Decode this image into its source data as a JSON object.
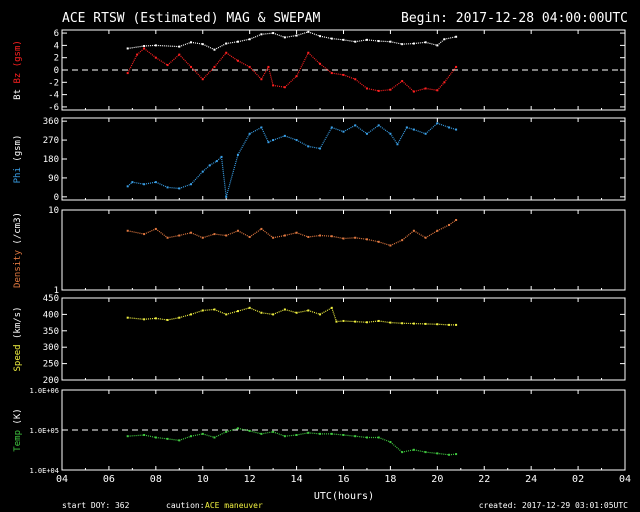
{
  "header": {
    "title": "ACE RTSW (Estimated) MAG & SWEPAM",
    "begin": "Begin: 2017-12-28 04:00:00UTC"
  },
  "footer": {
    "start_doy": "start DOY: 362",
    "caution_label": "caution:",
    "caution_text": "ACE maneuver",
    "created": "created: 2017-12-29 03:01:05UTC",
    "xlabel": "UTC(hours)"
  },
  "colors": {
    "background": "#000000",
    "axes": "#ffffff",
    "bt": "#ffffff",
    "bz": "#ff2020",
    "phi": "#3aa0e8",
    "density": "#e07840",
    "speed": "#f0f040",
    "temp": "#40c840",
    "caution": "#f0f040"
  },
  "chart_data": {
    "type": "scatter",
    "x_ticks": [
      "04",
      "06",
      "08",
      "10",
      "12",
      "14",
      "16",
      "18",
      "20",
      "22",
      "24",
      "02",
      "04"
    ],
    "xlim": [
      4,
      28
    ],
    "panels": [
      {
        "id": "mag",
        "ylabel_parts": [
          {
            "text": "Bt",
            "color": "#ffffff"
          },
          {
            "text": " Bz ",
            "color": "#ff2020"
          },
          {
            "text": "(gsm)",
            "color": "#ff2020"
          }
        ],
        "ylim": [
          -6.5,
          6.5
        ],
        "scale": "linear",
        "y_ticks": [
          {
            "v": 6,
            "l": "6"
          },
          {
            "v": 4,
            "l": "4"
          },
          {
            "v": 2,
            "l": "2"
          },
          {
            "v": 0,
            "l": "0"
          },
          {
            "v": -2,
            "l": "-2"
          },
          {
            "v": -4,
            "l": "-4"
          },
          {
            "v": -6,
            "l": "-6"
          }
        ],
        "dashed_line": 0,
        "series": [
          {
            "color": "#ffffff",
            "points": [
              [
                6.8,
                3.5
              ],
              [
                7.5,
                3.9
              ],
              [
                8.0,
                4.0
              ],
              [
                9.0,
                3.8
              ],
              [
                9.5,
                4.5
              ],
              [
                10.0,
                4.2
              ],
              [
                10.5,
                3.3
              ],
              [
                11.0,
                4.3
              ],
              [
                11.5,
                4.6
              ],
              [
                12.0,
                5.0
              ],
              [
                12.5,
                5.8
              ],
              [
                13.0,
                6.0
              ],
              [
                13.5,
                5.3
              ],
              [
                14.0,
                5.6
              ],
              [
                14.5,
                6.2
              ],
              [
                15.0,
                5.5
              ],
              [
                15.5,
                5.1
              ],
              [
                16.0,
                4.9
              ],
              [
                16.5,
                4.6
              ],
              [
                17.0,
                4.9
              ],
              [
                17.5,
                4.7
              ],
              [
                18.0,
                4.6
              ],
              [
                18.5,
                4.2
              ],
              [
                19.0,
                4.3
              ],
              [
                19.5,
                4.5
              ],
              [
                20.0,
                4.0
              ],
              [
                20.3,
                5.0
              ],
              [
                20.8,
                5.4
              ]
            ]
          },
          {
            "color": "#ff2020",
            "points": [
              [
                6.8,
                -0.5
              ],
              [
                7.2,
                2.5
              ],
              [
                7.5,
                3.5
              ],
              [
                8.0,
                2.0
              ],
              [
                8.5,
                0.8
              ],
              [
                9.0,
                2.5
              ],
              [
                9.5,
                0.5
              ],
              [
                10.0,
                -1.5
              ],
              [
                10.5,
                0.5
              ],
              [
                11.0,
                2.8
              ],
              [
                11.5,
                1.5
              ],
              [
                12.0,
                0.5
              ],
              [
                12.5,
                -1.5
              ],
              [
                12.8,
                0.5
              ],
              [
                13.0,
                -2.5
              ],
              [
                13.5,
                -2.8
              ],
              [
                14.0,
                -1.0
              ],
              [
                14.5,
                2.8
              ],
              [
                15.0,
                1.0
              ],
              [
                15.5,
                -0.5
              ],
              [
                16.0,
                -0.8
              ],
              [
                16.5,
                -1.5
              ],
              [
                17.0,
                -3.0
              ],
              [
                17.5,
                -3.4
              ],
              [
                18.0,
                -3.2
              ],
              [
                18.5,
                -1.8
              ],
              [
                19.0,
                -3.5
              ],
              [
                19.5,
                -3.0
              ],
              [
                20.0,
                -3.3
              ],
              [
                20.3,
                -2.0
              ],
              [
                20.8,
                0.5
              ]
            ]
          }
        ]
      },
      {
        "id": "phi",
        "ylabel_parts": [
          {
            "text": "Phi",
            "color": "#3aa0e8"
          },
          {
            "text": " (gsm)",
            "color": "#ffffff"
          }
        ],
        "ylim": [
          -15,
          375
        ],
        "scale": "linear",
        "y_ticks": [
          {
            "v": 360,
            "l": "360"
          },
          {
            "v": 270,
            "l": "270"
          },
          {
            "v": 180,
            "l": "180"
          },
          {
            "v": 90,
            "l": "90"
          },
          {
            "v": 0,
            "l": "0"
          }
        ],
        "series": [
          {
            "color": "#3aa0e8",
            "points": [
              [
                6.8,
                50
              ],
              [
                7.0,
                70
              ],
              [
                7.5,
                60
              ],
              [
                8.0,
                70
              ],
              [
                8.5,
                45
              ],
              [
                9.0,
                40
              ],
              [
                9.5,
                60
              ],
              [
                10.0,
                120
              ],
              [
                10.3,
                150
              ],
              [
                10.6,
                170
              ],
              [
                10.8,
                190
              ],
              [
                11.0,
                0
              ],
              [
                11.5,
                200
              ],
              [
                12.0,
                300
              ],
              [
                12.5,
                330
              ],
              [
                12.8,
                260
              ],
              [
                13.0,
                270
              ],
              [
                13.5,
                290
              ],
              [
                14.0,
                270
              ],
              [
                14.5,
                240
              ],
              [
                15.0,
                230
              ],
              [
                15.5,
                330
              ],
              [
                16.0,
                310
              ],
              [
                16.5,
                340
              ],
              [
                17.0,
                300
              ],
              [
                17.5,
                340
              ],
              [
                18.0,
                300
              ],
              [
                18.3,
                250
              ],
              [
                18.7,
                330
              ],
              [
                19.0,
                320
              ],
              [
                19.5,
                300
              ],
              [
                20.0,
                350
              ],
              [
                20.5,
                330
              ],
              [
                20.8,
                320
              ]
            ]
          }
        ]
      },
      {
        "id": "density",
        "ylabel_parts": [
          {
            "text": "Density",
            "color": "#e07840"
          },
          {
            "text": " (/cm3)",
            "color": "#ffffff"
          }
        ],
        "ylim": [
          1,
          10
        ],
        "scale": "log",
        "y_ticks": [
          {
            "v": 10,
            "l": "10"
          },
          {
            "v": 1,
            "l": "1"
          }
        ],
        "series": [
          {
            "color": "#e07840",
            "points": [
              [
                6.8,
                5.5
              ],
              [
                7.5,
                5.0
              ],
              [
                8.0,
                5.8
              ],
              [
                8.5,
                4.5
              ],
              [
                9.0,
                4.8
              ],
              [
                9.5,
                5.2
              ],
              [
                10.0,
                4.5
              ],
              [
                10.5,
                5.0
              ],
              [
                11.0,
                4.8
              ],
              [
                11.5,
                5.5
              ],
              [
                12.0,
                4.6
              ],
              [
                12.5,
                5.8
              ],
              [
                13.0,
                4.5
              ],
              [
                13.5,
                4.8
              ],
              [
                14.0,
                5.2
              ],
              [
                14.5,
                4.6
              ],
              [
                15.0,
                4.8
              ],
              [
                15.5,
                4.7
              ],
              [
                16.0,
                4.4
              ],
              [
                16.5,
                4.5
              ],
              [
                17.0,
                4.3
              ],
              [
                17.5,
                4.0
              ],
              [
                18.0,
                3.6
              ],
              [
                18.5,
                4.2
              ],
              [
                19.0,
                5.5
              ],
              [
                19.5,
                4.5
              ],
              [
                20.0,
                5.5
              ],
              [
                20.5,
                6.5
              ],
              [
                20.8,
                7.5
              ]
            ]
          }
        ]
      },
      {
        "id": "speed",
        "ylabel_parts": [
          {
            "text": "Speed",
            "color": "#f0f040"
          },
          {
            "text": " (km/s)",
            "color": "#ffffff"
          }
        ],
        "ylim": [
          200,
          450
        ],
        "scale": "linear",
        "y_ticks": [
          {
            "v": 450,
            "l": "450"
          },
          {
            "v": 400,
            "l": "400"
          },
          {
            "v": 350,
            "l": "350"
          },
          {
            "v": 300,
            "l": "300"
          },
          {
            "v": 250,
            "l": "250"
          },
          {
            "v": 200,
            "l": "200"
          }
        ],
        "series": [
          {
            "color": "#f0f040",
            "points": [
              [
                6.8,
                390
              ],
              [
                7.5,
                385
              ],
              [
                8.0,
                388
              ],
              [
                8.5,
                383
              ],
              [
                9.0,
                390
              ],
              [
                9.5,
                400
              ],
              [
                10.0,
                412
              ],
              [
                10.5,
                415
              ],
              [
                11.0,
                400
              ],
              [
                11.5,
                410
              ],
              [
                12.0,
                420
              ],
              [
                12.5,
                405
              ],
              [
                13.0,
                400
              ],
              [
                13.5,
                415
              ],
              [
                14.0,
                405
              ],
              [
                14.5,
                412
              ],
              [
                15.0,
                400
              ],
              [
                15.5,
                420
              ],
              [
                15.7,
                378
              ],
              [
                16.0,
                380
              ],
              [
                16.5,
                378
              ],
              [
                17.0,
                376
              ],
              [
                17.5,
                380
              ],
              [
                18.0,
                375
              ],
              [
                18.5,
                373
              ],
              [
                19.0,
                372
              ],
              [
                19.5,
                371
              ],
              [
                20.0,
                370
              ],
              [
                20.5,
                368
              ],
              [
                20.8,
                368
              ]
            ]
          }
        ]
      },
      {
        "id": "temp",
        "ylabel_parts": [
          {
            "text": "Temp",
            "color": "#40c840"
          },
          {
            "text": " (K)",
            "color": "#ffffff"
          }
        ],
        "ylim": [
          10000,
          1000000
        ],
        "scale": "log",
        "y_ticks": [
          {
            "v": 1000000,
            "l": "1.0E+06"
          },
          {
            "v": 100000,
            "l": "1.0E+05"
          },
          {
            "v": 10000,
            "l": "1.0E+04"
          }
        ],
        "dashed_line": 100000,
        "series": [
          {
            "color": "#40c840",
            "points": [
              [
                6.8,
                70000
              ],
              [
                7.5,
                75000
              ],
              [
                8.0,
                65000
              ],
              [
                8.5,
                60000
              ],
              [
                9.0,
                55000
              ],
              [
                9.5,
                70000
              ],
              [
                10.0,
                80000
              ],
              [
                10.5,
                65000
              ],
              [
                11.0,
                90000
              ],
              [
                11.5,
                110000
              ],
              [
                12.0,
                95000
              ],
              [
                12.5,
                80000
              ],
              [
                13.0,
                90000
              ],
              [
                13.5,
                70000
              ],
              [
                14.0,
                75000
              ],
              [
                14.5,
                85000
              ],
              [
                15.0,
                80000
              ],
              [
                15.5,
                80000
              ],
              [
                16.0,
                75000
              ],
              [
                16.5,
                70000
              ],
              [
                17.0,
                65000
              ],
              [
                17.5,
                65000
              ],
              [
                18.0,
                50000
              ],
              [
                18.5,
                28000
              ],
              [
                19.0,
                32000
              ],
              [
                19.5,
                28000
              ],
              [
                20.0,
                26000
              ],
              [
                20.5,
                24000
              ],
              [
                20.8,
                25000
              ]
            ]
          }
        ]
      }
    ]
  }
}
